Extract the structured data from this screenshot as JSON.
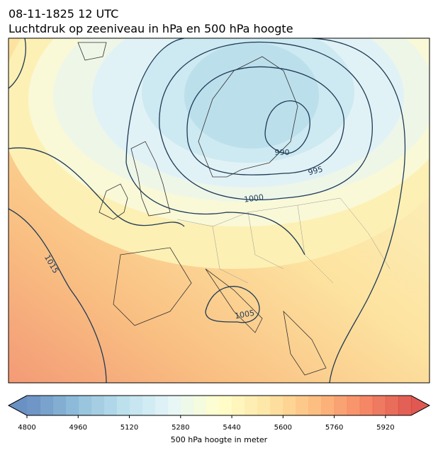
{
  "header": {
    "date": "08-11-1825 12 UTC",
    "title": "Luchtdruk op zeeniveau in hPa en 500 hPa hoogte"
  },
  "map": {
    "contour_labels": [
      "990",
      "995",
      "1000",
      "1005",
      "1015"
    ]
  },
  "colorbar": {
    "label": "500 hPa hoogte in meter",
    "range": [
      4800,
      6000
    ],
    "ticks": [
      4800,
      4960,
      5120,
      5280,
      5440,
      5600,
      5760,
      5920
    ]
  }
}
